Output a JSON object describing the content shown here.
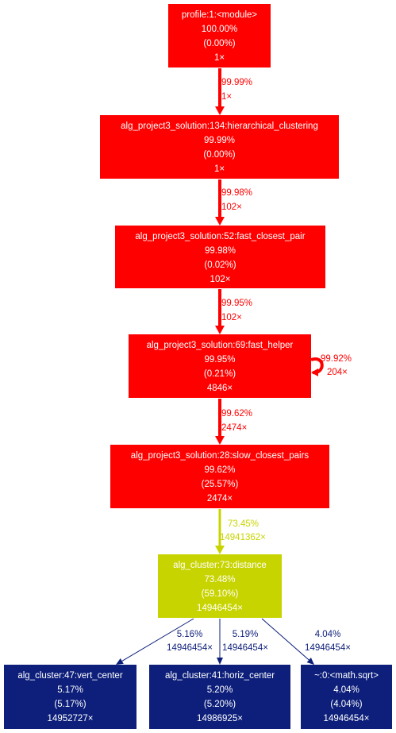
{
  "colors": {
    "hot": "#ff0000",
    "warm": "#c8d400",
    "cold": "#0d1f7a",
    "node_text": "#ffffff",
    "edge_text_cold": "#0d1f7a"
  },
  "nodes": [
    {
      "id": "module",
      "name": "profile:1:<module>",
      "total": "100.00%",
      "self": "(0.00%)",
      "calls": "1×",
      "heat": "hot"
    },
    {
      "id": "hier",
      "name": "alg_project3_solution:134:hierarchical_clustering",
      "total": "99.99%",
      "self": "(0.00%)",
      "calls": "1×",
      "heat": "hot"
    },
    {
      "id": "fcp",
      "name": "alg_project3_solution:52:fast_closest_pair",
      "total": "99.98%",
      "self": "(0.02%)",
      "calls": "102×",
      "heat": "hot"
    },
    {
      "id": "fh",
      "name": "alg_project3_solution:69:fast_helper",
      "total": "99.95%",
      "self": "(0.21%)",
      "calls": "4846×",
      "heat": "hot"
    },
    {
      "id": "scp",
      "name": "alg_project3_solution:28:slow_closest_pairs",
      "total": "99.62%",
      "self": "(25.57%)",
      "calls": "2474×",
      "heat": "hot"
    },
    {
      "id": "dist",
      "name": "alg_cluster:73:distance",
      "total": "73.48%",
      "self": "(59.10%)",
      "calls": "14946454×",
      "heat": "warm"
    },
    {
      "id": "vc",
      "name": "alg_cluster:47:vert_center",
      "total": "5.17%",
      "self": "(5.17%)",
      "calls": "14952727×",
      "heat": "cold"
    },
    {
      "id": "hc",
      "name": "alg_cluster:41:horiz_center",
      "total": "5.20%",
      "self": "(5.20%)",
      "calls": "14986925×",
      "heat": "cold"
    },
    {
      "id": "sqrt",
      "name": "~:0:<math.sqrt>",
      "total": "4.04%",
      "self": "(4.04%)",
      "calls": "14946454×",
      "heat": "cold"
    }
  ],
  "edges": [
    {
      "from": "module",
      "to": "hier",
      "pct": "99.99%",
      "calls": "1×",
      "heat": "hot"
    },
    {
      "from": "hier",
      "to": "fcp",
      "pct": "99.98%",
      "calls": "102×",
      "heat": "hot"
    },
    {
      "from": "fcp",
      "to": "fh",
      "pct": "99.95%",
      "calls": "102×",
      "heat": "hot"
    },
    {
      "from": "fh",
      "to": "fh",
      "pct": "99.92%",
      "calls": "204×",
      "heat": "hot"
    },
    {
      "from": "fh",
      "to": "scp",
      "pct": "99.62%",
      "calls": "2474×",
      "heat": "hot"
    },
    {
      "from": "scp",
      "to": "dist",
      "pct": "73.45%",
      "calls": "14941362×",
      "heat": "warm"
    },
    {
      "from": "dist",
      "to": "vc",
      "pct": "5.16%",
      "calls": "14946454×",
      "heat": "cold"
    },
    {
      "from": "dist",
      "to": "hc",
      "pct": "5.19%",
      "calls": "14946454×",
      "heat": "cold"
    },
    {
      "from": "dist",
      "to": "sqrt",
      "pct": "4.04%",
      "calls": "14946454×",
      "heat": "cold"
    }
  ]
}
